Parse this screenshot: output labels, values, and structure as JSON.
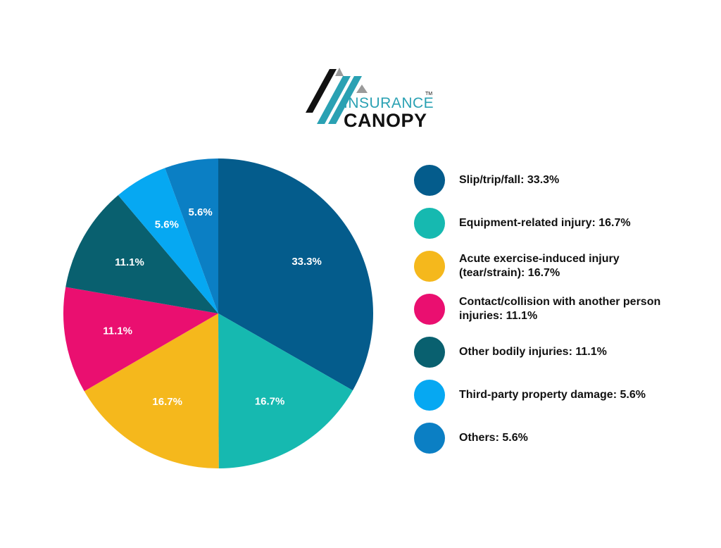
{
  "logo": {
    "brand_word_1": "INSURANCE",
    "brand_word_2": "CANOPY",
    "trademark": "TM"
  },
  "colors": {
    "navy_blue": "#045c8c",
    "teal": "#16b9b0",
    "yellow": "#f5b81c",
    "magenta": "#ea0f70",
    "dark_teal": "#09606f",
    "sky_blue": "#06a8f2",
    "medium_blue": "#0b7fc4",
    "logo_teal": "#2aa1b3",
    "logo_black": "#111111",
    "logo_gray": "#9a9a9a"
  },
  "chart_data": {
    "type": "pie",
    "slices": [
      {
        "label": "Slip/trip/fall: 33.3%",
        "value": 33.3,
        "data_label": "33.3%",
        "color": "#045c8c"
      },
      {
        "label": "Equipment-related injury: 16.7%",
        "value": 16.7,
        "data_label": "16.7%",
        "color": "#16b9b0"
      },
      {
        "label": "Acute exercise-induced injury (tear/strain): 16.7%",
        "value": 16.7,
        "data_label": "16.7%",
        "color": "#f5b81c"
      },
      {
        "label": "Contact/collision with another person injuries: 11.1%",
        "value": 11.1,
        "data_label": "11.1%",
        "color": "#ea0f70"
      },
      {
        "label": "Other bodily injuries: 11.1%",
        "value": 11.1,
        "data_label": "11.1%",
        "color": "#09606f"
      },
      {
        "label": "Third-party property damage: 5.6%",
        "value": 5.6,
        "data_label": "5.6%",
        "color": "#06a8f2"
      },
      {
        "label": "Others: 5.6%",
        "value": 5.6,
        "data_label": "5.6%",
        "color": "#0b7fc4"
      }
    ],
    "start_angle": "12 o'clock",
    "direction": "clockwise",
    "legend_position": "right"
  }
}
